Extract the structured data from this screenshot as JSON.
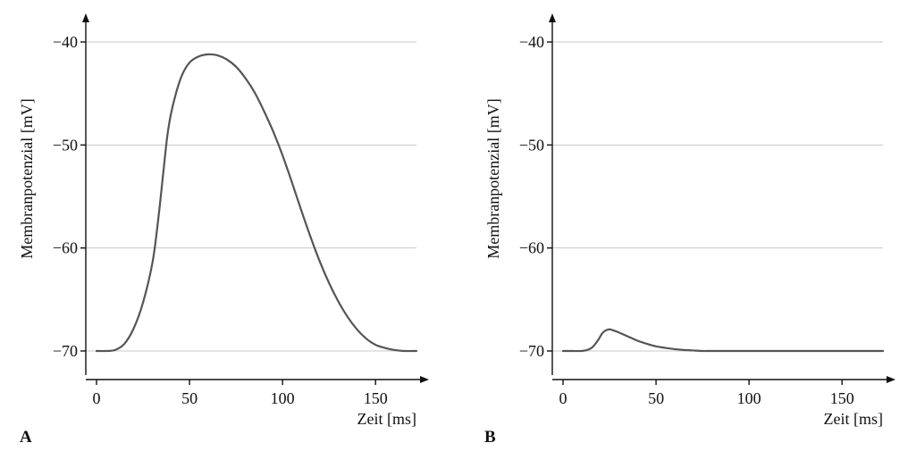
{
  "colors": {
    "curve": "#555555",
    "grid": "#c8c8c8",
    "axis": "#111111"
  },
  "chart_data": [
    {
      "type": "line",
      "panel_label": "A",
      "title": "",
      "xlabel": "Zeit [ms]",
      "ylabel": "Membranpotenzial [mV]",
      "xlim": [
        0,
        172
      ],
      "ylim": [
        -70,
        -40
      ],
      "xticks": [
        0,
        50,
        100,
        150
      ],
      "xtick_labels": [
        "0",
        "50",
        "100",
        "150"
      ],
      "yticks": [
        -70,
        -60,
        -50,
        -40
      ],
      "ytick_labels": [
        "−70",
        "−60",
        "−50",
        "−40"
      ],
      "grid": "horizontal",
      "series": [
        {
          "x": [
            0,
            5,
            10,
            15,
            20,
            25,
            30,
            33,
            36,
            38,
            40,
            43,
            46,
            50,
            55,
            60,
            65,
            70,
            75,
            80,
            85,
            90,
            95,
            100,
            105,
            110,
            115,
            120,
            125,
            130,
            135,
            140,
            145,
            150,
            155,
            160,
            165,
            172
          ],
          "y": [
            -70,
            -70,
            -69.9,
            -69.3,
            -67.8,
            -65.3,
            -61.5,
            -57.5,
            -52.5,
            -49.2,
            -47,
            -44.8,
            -43.2,
            -42,
            -41.4,
            -41.2,
            -41.3,
            -41.7,
            -42.4,
            -43.5,
            -44.9,
            -46.7,
            -48.7,
            -51,
            -53.6,
            -56.3,
            -58.9,
            -61.3,
            -63.4,
            -65.2,
            -66.7,
            -67.9,
            -68.8,
            -69.4,
            -69.7,
            -69.9,
            -70,
            -70
          ]
        }
      ]
    },
    {
      "type": "line",
      "panel_label": "B",
      "title": "",
      "xlabel": "Zeit [ms]",
      "ylabel": "Membranpotenzial [mV]",
      "xlim": [
        0,
        172
      ],
      "ylim": [
        -70,
        -40
      ],
      "xticks": [
        0,
        50,
        100,
        150
      ],
      "xtick_labels": [
        "0",
        "50",
        "100",
        "150"
      ],
      "yticks": [
        -70,
        -60,
        -50,
        -40
      ],
      "ytick_labels": [
        "−70",
        "−60",
        "−50",
        "−40"
      ],
      "grid": "horizontal",
      "series": [
        {
          "x": [
            0,
            5,
            10,
            13,
            16,
            19,
            21,
            23,
            25,
            27,
            30,
            35,
            40,
            45,
            50,
            55,
            60,
            65,
            70,
            75,
            80,
            100,
            150,
            172
          ],
          "y": [
            -70,
            -70,
            -70,
            -69.9,
            -69.6,
            -68.9,
            -68.3,
            -68,
            -67.9,
            -68,
            -68.2,
            -68.6,
            -69,
            -69.3,
            -69.55,
            -69.7,
            -69.82,
            -69.9,
            -69.95,
            -70,
            -70,
            -70,
            -70,
            -70
          ]
        }
      ]
    }
  ]
}
